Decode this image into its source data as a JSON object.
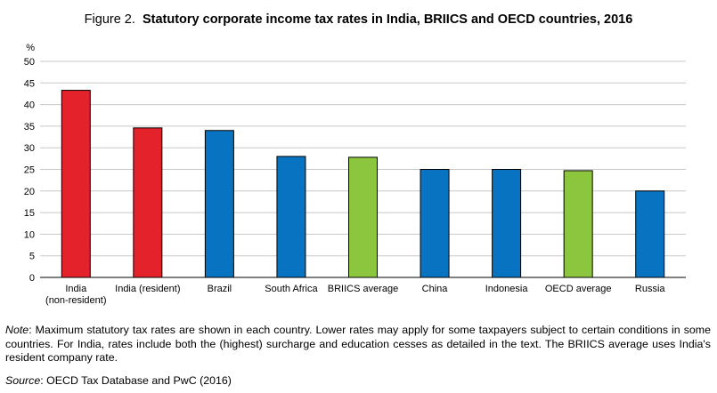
{
  "header": {
    "figure_label": "Figure 2.",
    "title": "Statutory corporate income tax rates in India, BRIICS and OECD countries, 2016"
  },
  "colors": {
    "india": "#e3222b",
    "country": "#0873c0",
    "average": "#8cc63e",
    "gridline": "#c8c8c8"
  },
  "chart_data": {
    "type": "bar",
    "ylabel": "%",
    "ylim": [
      0,
      50
    ],
    "yticks": [
      0,
      5,
      10,
      15,
      20,
      25,
      30,
      35,
      40,
      45,
      50
    ],
    "grid": true,
    "categories": [
      {
        "label": [
          "India",
          "(non-resident)"
        ],
        "value": 43.3,
        "group": "india"
      },
      {
        "label": [
          "India (resident)"
        ],
        "value": 34.6,
        "group": "india"
      },
      {
        "label": [
          "Brazil"
        ],
        "value": 34.0,
        "group": "country"
      },
      {
        "label": [
          "South Africa"
        ],
        "value": 28.0,
        "group": "country"
      },
      {
        "label": [
          "BRIICS average"
        ],
        "value": 27.8,
        "group": "average"
      },
      {
        "label": [
          "China"
        ],
        "value": 25.0,
        "group": "country"
      },
      {
        "label": [
          "Indonesia"
        ],
        "value": 25.0,
        "group": "country"
      },
      {
        "label": [
          "OECD average"
        ],
        "value": 24.7,
        "group": "average"
      },
      {
        "label": [
          "Russia"
        ],
        "value": 20.0,
        "group": "country"
      }
    ]
  },
  "note": {
    "label": "Note",
    "text": ": Maximum statutory tax rates are shown in each country. Lower rates may apply for some taxpayers subject to certain conditions in some countries. For India, rates include both the (highest) surcharge and education cesses as detailed in the text. The BRIICS average uses India's resident company rate."
  },
  "source": {
    "label": "Source",
    "text": ": OECD Tax Database and PwC (2016)"
  }
}
